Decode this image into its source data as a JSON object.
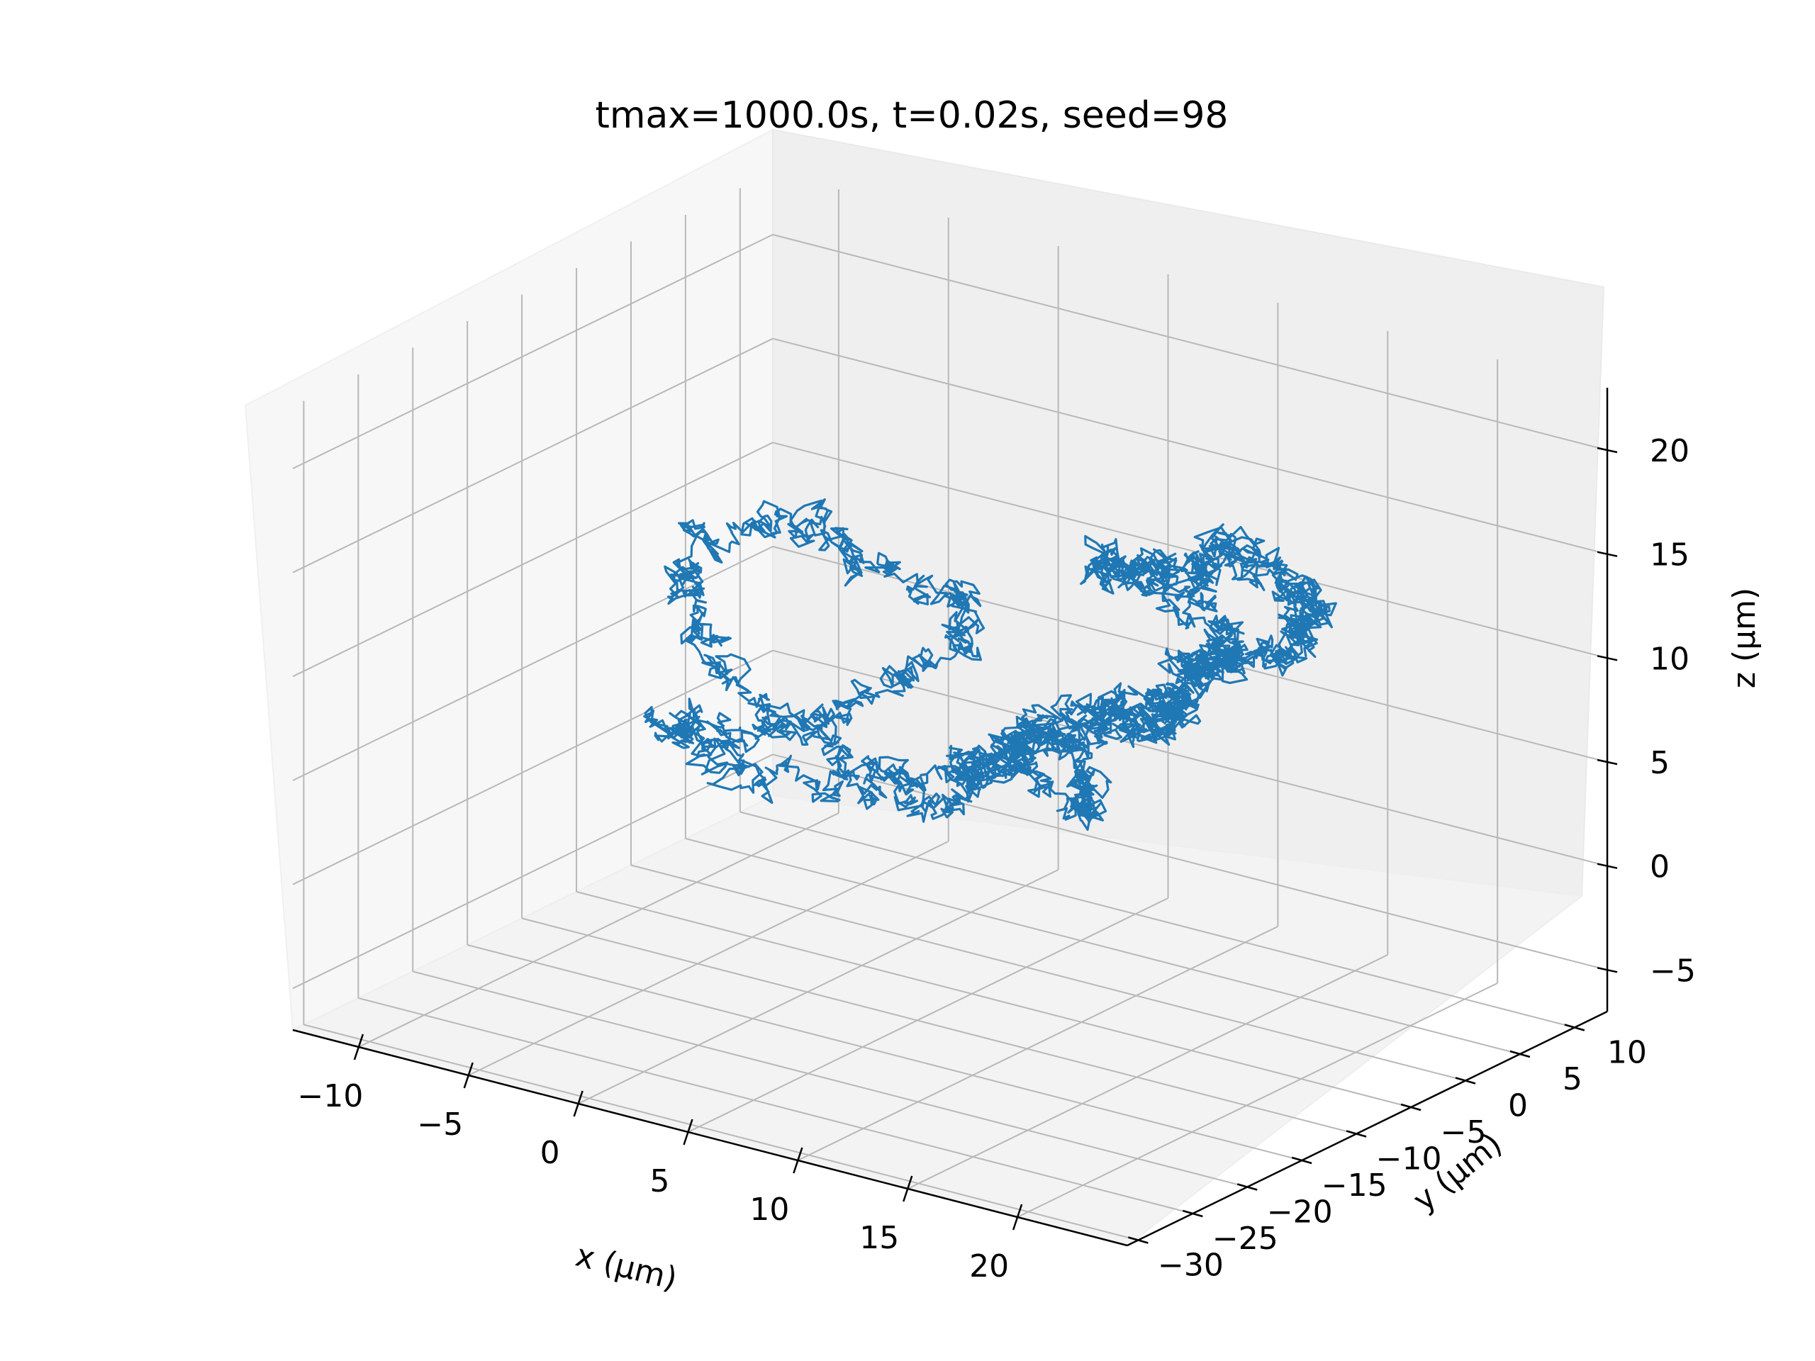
{
  "chart_data": {
    "type": "line",
    "projection": "3d",
    "title": "tmax=1000.0s, t=0.02s, seed=98",
    "xlabel": "x (μm)",
    "ylabel": "y (μm)",
    "zlabel": "z (μm)",
    "xlim": [
      -13,
      25
    ],
    "ylim": [
      -31,
      13
    ],
    "zlim": [
      -7,
      23
    ],
    "x_ticks": [
      "−10",
      "−5",
      "0",
      "5",
      "10",
      "15",
      "20"
    ],
    "y_ticks": [
      "−30",
      "−25",
      "−20",
      "−15",
      "−10",
      "−5",
      "0",
      "5",
      "10"
    ],
    "z_ticks": [
      "−5",
      "0",
      "5",
      "10",
      "15",
      "20"
    ],
    "x_tick_values": [
      -10,
      -5,
      0,
      5,
      10,
      15,
      20
    ],
    "y_tick_values": [
      -30,
      -25,
      -20,
      -15,
      -10,
      -5,
      0,
      5,
      10
    ],
    "z_tick_values": [
      -5,
      0,
      5,
      10,
      15,
      20
    ],
    "grid": true,
    "line_color": "#1f77b4",
    "series": [
      {
        "name": "",
        "simulation": {
          "tmax": 1000.0,
          "dt": 0.02,
          "seed": 98
        },
        "waypoints": [
          [
            0,
            0,
            0
          ],
          [
            -2,
            -3,
            2
          ],
          [
            -5,
            -6,
            5
          ],
          [
            -7,
            -6,
            8
          ],
          [
            -8,
            -5,
            10
          ],
          [
            -6,
            -4,
            12
          ],
          [
            -3,
            -3,
            13
          ],
          [
            -1,
            -2,
            11
          ],
          [
            2,
            0,
            10
          ],
          [
            1,
            2,
            7
          ],
          [
            -1,
            1,
            5
          ],
          [
            -4,
            -2,
            3
          ],
          [
            -7,
            -4,
            2
          ],
          [
            -9,
            -6,
            3
          ],
          [
            -8,
            -4,
            1
          ],
          [
            -5,
            -2,
            0
          ],
          [
            -2,
            0,
            0
          ],
          [
            1,
            2,
            1
          ],
          [
            3,
            3,
            2
          ],
          [
            5,
            4,
            3
          ],
          [
            7,
            2,
            2
          ],
          [
            8,
            -1,
            1
          ],
          [
            6,
            -2,
            3
          ],
          [
            4,
            0,
            4
          ],
          [
            6,
            3,
            5
          ],
          [
            9,
            5,
            6
          ],
          [
            11,
            4,
            8
          ],
          [
            13,
            2,
            10
          ],
          [
            14,
            0,
            12
          ],
          [
            12,
            -2,
            14
          ],
          [
            10,
            -4,
            15
          ],
          [
            12,
            -6,
            16
          ],
          [
            15,
            -8,
            17
          ],
          [
            18,
            -10,
            18
          ],
          [
            20,
            -12,
            20
          ],
          [
            21,
            -13,
            21
          ],
          [
            22,
            -11,
            19
          ],
          [
            23,
            -9,
            18
          ],
          [
            22,
            -8,
            16
          ],
          [
            21,
            -7,
            15
          ],
          [
            20,
            -6,
            14
          ],
          [
            18,
            -6,
            13
          ],
          [
            16,
            -5,
            12
          ],
          [
            15,
            -4,
            11
          ],
          [
            14,
            -4,
            9
          ],
          [
            13,
            -3,
            8
          ],
          [
            12,
            -2,
            7
          ],
          [
            10,
            0,
            6
          ],
          [
            8,
            2,
            5
          ],
          [
            6,
            3,
            4
          ],
          [
            4,
            2,
            3
          ],
          [
            3,
            1,
            2
          ],
          [
            2,
            0,
            1
          ],
          [
            1,
            -1,
            0
          ]
        ]
      }
    ]
  }
}
